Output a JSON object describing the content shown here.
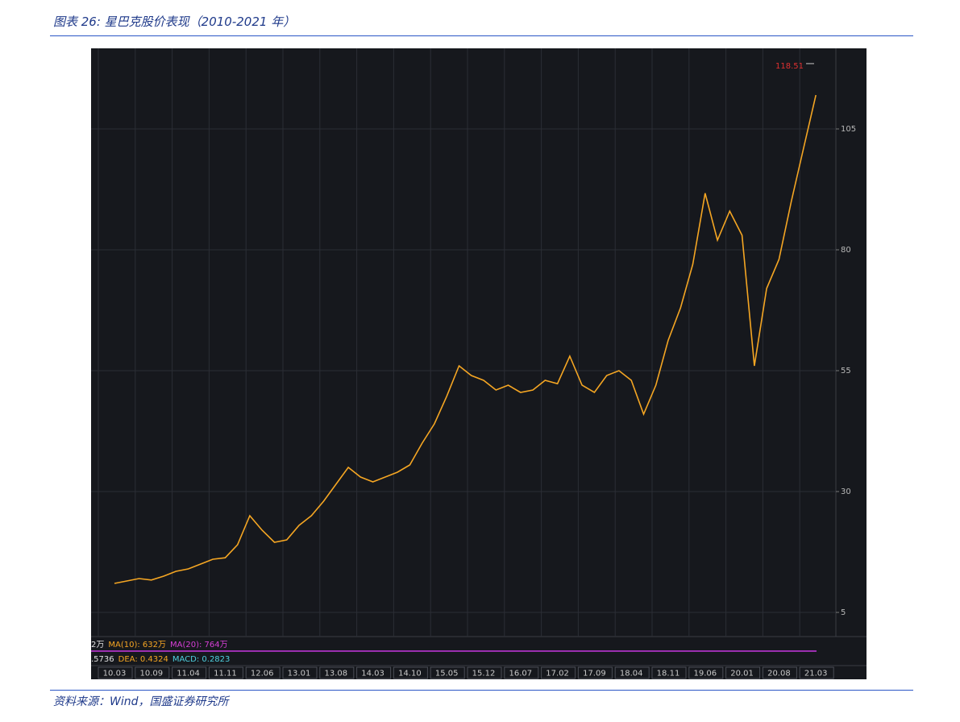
{
  "header": {
    "title": "图表 26: 星巴克股价表现（2010-2021 年）"
  },
  "footer": {
    "source": "资料来源：Wind，国盛证券研究所"
  },
  "chart_data": {
    "type": "line",
    "x": [
      "10.03",
      null,
      null,
      "10.09",
      null,
      null,
      "11.04",
      null,
      null,
      "11.11",
      null,
      null,
      "12.06",
      null,
      null,
      "13.01",
      null,
      null,
      "13.08",
      null,
      null,
      "14.03",
      null,
      null,
      "14.10",
      null,
      null,
      "15.05",
      null,
      null,
      "15.12",
      null,
      null,
      "16.07",
      null,
      null,
      "17.02",
      null,
      null,
      "17.09",
      null,
      null,
      "18.04",
      null,
      null,
      "18.11",
      null,
      null,
      "19.06",
      null,
      null,
      "20.01",
      null,
      null,
      "20.08",
      null,
      null,
      "21.03"
    ],
    "series": [
      {
        "color": "#f5a623",
        "values": [
          11,
          11.5,
          12,
          11.7,
          12.5,
          13.5,
          14,
          15,
          16,
          16.3,
          19,
          25,
          22,
          19.5,
          20,
          23,
          25,
          28,
          31.5,
          35,
          33,
          32,
          33,
          34,
          35.5,
          40,
          44,
          49.7,
          56,
          54,
          53,
          51,
          52,
          50.5,
          51,
          53,
          52.3,
          58,
          52,
          50.5,
          54,
          55,
          53,
          46,
          52,
          61.3,
          68,
          77,
          91.7,
          82,
          88,
          83,
          56,
          72,
          78,
          90,
          101,
          112
        ]
      }
    ],
    "ylim": [
      0,
      121
    ],
    "yticks": [
      5,
      30,
      55,
      80,
      105
    ],
    "grid": true,
    "max_label": 118.51,
    "indicator_rows": [
      [
        {
          "text": "2万",
          "color": "#e0e0e0"
        },
        {
          "text": "MA(10): 632万",
          "color": "#f5a623"
        },
        {
          "text": "MA(20): 764万",
          "color": "#d63fd6"
        }
      ],
      [
        {
          "text": ".5736",
          "color": "#e0e0e0"
        },
        {
          "text": "DEA: 0.4324",
          "color": "#f5a623"
        },
        {
          "text": "MACD: 0.2823",
          "color": "#4fd1e0"
        }
      ]
    ]
  }
}
